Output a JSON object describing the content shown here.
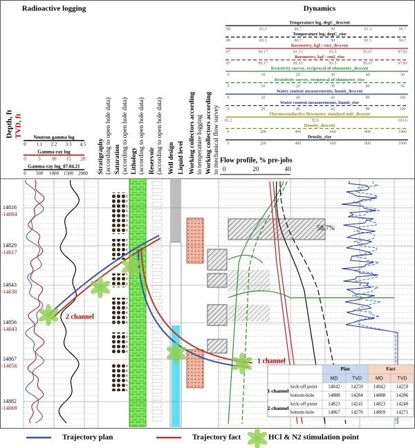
{
  "header": {
    "depth_label": "Depth, ft",
    "tvd_label": "TVD, ft",
    "radioactive_title": "Radioactive logging",
    "dynamics_title": "Dynamics"
  },
  "left_scales": [
    {
      "label": "Neutron gamma log",
      "ticks": [
        0,
        1.1,
        2.2,
        3.3,
        4.5
      ],
      "color": "#000000"
    },
    {
      "label": "Gamma-ray log",
      "ticks": [
        0,
        5,
        10,
        15,
        20
      ],
      "color": "#c00000"
    },
    {
      "label": "Gamma-ray log_07.04.21",
      "ticks": [
        0,
        500,
        1000,
        1500,
        2000
      ],
      "color": "#000000"
    }
  ],
  "columns": [
    {
      "lines": [
        "Stratigraphy",
        "(according to open hole data)"
      ]
    },
    {
      "lines": [
        "Saturation",
        "(according to open hole data)"
      ]
    },
    {
      "lines": [
        "Lithology",
        "(according to open hole data)"
      ]
    },
    {
      "lines": [
        "Reservoir",
        "(according to open hole data)"
      ]
    },
    {
      "lines": [
        "Well design"
      ]
    },
    {
      "lines": [
        "Liquid level"
      ]
    },
    {
      "lines": [
        "Working collectors according",
        "to temperature logging"
      ]
    },
    {
      "lines": [
        "Working collectors according",
        "to mechanical flow survey"
      ]
    }
  ],
  "dynamics_scales": [
    {
      "label": "Temperature log, degC_descent",
      "ticks": [
        80,
        83.3,
        86.7,
        90,
        93.3,
        96.7
      ],
      "color": "#000000"
    },
    {
      "label": "Temperature log, degC_rise",
      "ticks": [
        80,
        83.3,
        86.7,
        90,
        93.3,
        96.7
      ],
      "color": "#000000"
    },
    {
      "label": "Barometry, kgf / cm2_descent",
      "ticks": [
        87,
        89.17,
        91.33,
        93.5,
        95.67,
        97.83
      ],
      "color": "#b22222"
    },
    {
      "label": "Barometry, kgf / cm2_rise",
      "ticks": [
        87,
        89.17,
        91.33,
        93.5,
        95.67,
        97.83
      ],
      "color": "#b22222"
    },
    {
      "label": "Resistivity survey, reciprocal of ohmmeter_descent",
      "ticks": [
        0,
        10,
        20,
        30,
        40,
        50
      ],
      "color": "#2e8b2e"
    },
    {
      "label": "Resistivity survey, reciprocal of ohmmeter_rise",
      "ticks": [
        0,
        10,
        20,
        30,
        40,
        50
      ],
      "color": "#2e8b2e"
    },
    {
      "label": "Water content measurements, humit_descent",
      "ticks": [
        0,
        20,
        40,
        60,
        80,
        100
      ],
      "color": "#1f2f8f"
    },
    {
      "label": "Water content measurements, humit_rise",
      "ticks": [
        0,
        20,
        40,
        60,
        80,
        100
      ],
      "color": "#1f2f8f"
    },
    {
      "label": "Thermoconductive flowmeter, standard unit_descent",
      "ticks": [
        81.2,
        92.6,
        103.6
      ],
      "color": "#8b8b00"
    },
    {
      "label": "Density_descent",
      "ticks": [
        0,
        200,
        400,
        600,
        800,
        1000
      ],
      "color": "#8b8b00"
    },
    {
      "label": "Density_rise",
      "ticks": [
        0,
        200,
        400,
        600,
        800,
        1000
      ],
      "color": "#000000"
    }
  ],
  "flow_profile": {
    "label": "Flow profile, % pre-jobs",
    "ticks": [
      0,
      20,
      40
    ]
  },
  "depths": [
    {
      "md": 14816,
      "tvd": -14004
    },
    {
      "md": 14829,
      "tvd": -14017
    },
    {
      "md": 14843,
      "tvd": -14030
    },
    {
      "md": 14856,
      "tvd": -14043
    },
    {
      "md": 14867,
      "tvd": -14056
    },
    {
      "md": 14882,
      "tvd": -14069
    }
  ],
  "annotations": {
    "channel_2": "2 channel",
    "channel_1": "1 channel",
    "share": "58.7%"
  },
  "table": {
    "groups": [
      "Plan",
      "Fact"
    ],
    "subheaders": [
      "MD",
      "TVD",
      "MD",
      "TVD"
    ],
    "channels": [
      {
        "name": "1 channel",
        "rows": [
          {
            "point": "kick-off point",
            "values": [
              14842,
              14259,
              14842,
              14259
            ]
          },
          {
            "point": "bottom-hole",
            "values": [
              14888,
              14284,
              14888,
              14286
            ]
          }
        ]
      },
      {
        "name": "2 channel",
        "rows": [
          {
            "point": "kick-off point",
            "values": [
              14823,
              14241,
              14823,
              14240
            ]
          },
          {
            "point": "bottom-hole",
            "values": [
              14867,
              14270,
              14869,
              14271
            ]
          }
        ]
      }
    ]
  },
  "legend": [
    {
      "label": "Trajectory plan",
      "color": "#3b4fa8"
    },
    {
      "label": "Trajectory fact",
      "color": "#c0392b"
    },
    {
      "label": "HCl & N2 stimulation point",
      "color": "#8fd14f"
    }
  ]
}
